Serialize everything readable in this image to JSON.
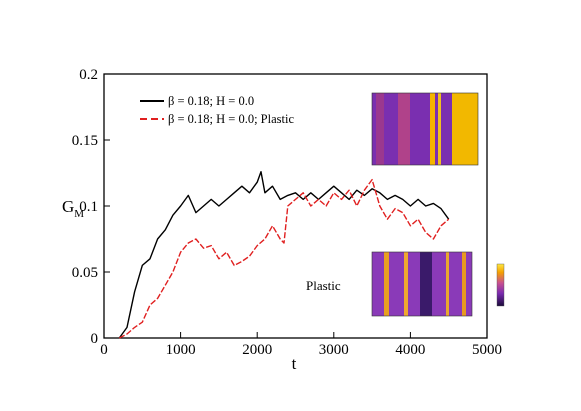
{
  "chart_data": {
    "type": "line",
    "xlabel": "t",
    "ylabel_main": "G",
    "ylabel_sub": "M",
    "xlim": [
      0,
      5000
    ],
    "ylim": [
      0,
      0.2
    ],
    "xticks": [
      0,
      1000,
      2000,
      3000,
      4000,
      5000
    ],
    "yticks": [
      0,
      0.05,
      0.1,
      0.15,
      0.2
    ],
    "xtick_labels": [
      "0",
      "1000",
      "2000",
      "3000",
      "4000",
      "5000"
    ],
    "ytick_labels": [
      "0",
      "0.05",
      "0.1",
      "0.15",
      "0.2"
    ],
    "grid": false,
    "legend_position": "top-left",
    "series": [
      {
        "name": "β = 0.18; H = 0.0",
        "color": "#000000",
        "dash": "solid",
        "x": [
          200,
          300,
          400,
          500,
          600,
          700,
          800,
          900,
          1000,
          1100,
          1200,
          1300,
          1400,
          1500,
          1600,
          1700,
          1800,
          1900,
          2000,
          2050,
          2100,
          2200,
          2300,
          2400,
          2500,
          2600,
          2700,
          2800,
          2900,
          3000,
          3100,
          3200,
          3300,
          3400,
          3500,
          3600,
          3700,
          3800,
          3900,
          4000,
          4100,
          4200,
          4300,
          4400,
          4500
        ],
        "y": [
          0.0,
          0.008,
          0.035,
          0.055,
          0.06,
          0.075,
          0.082,
          0.093,
          0.1,
          0.108,
          0.095,
          0.1,
          0.105,
          0.1,
          0.105,
          0.11,
          0.115,
          0.11,
          0.118,
          0.126,
          0.11,
          0.115,
          0.105,
          0.108,
          0.11,
          0.105,
          0.11,
          0.105,
          0.11,
          0.115,
          0.11,
          0.105,
          0.112,
          0.108,
          0.113,
          0.11,
          0.105,
          0.108,
          0.105,
          0.1,
          0.105,
          0.1,
          0.102,
          0.098,
          0.09
        ]
      },
      {
        "name": "β = 0.18; H = 0.0;  Plastic",
        "color": "#e02020",
        "dash": "dashed",
        "x": [
          200,
          300,
          400,
          500,
          600,
          700,
          800,
          900,
          1000,
          1100,
          1200,
          1300,
          1400,
          1500,
          1600,
          1700,
          1800,
          1900,
          2000,
          2100,
          2200,
          2300,
          2350,
          2400,
          2500,
          2600,
          2700,
          2800,
          2900,
          3000,
          3100,
          3200,
          3300,
          3400,
          3500,
          3600,
          3700,
          3800,
          3900,
          4000,
          4100,
          4200,
          4300,
          4400,
          4500
        ],
        "y": [
          0.0,
          0.003,
          0.008,
          0.012,
          0.025,
          0.03,
          0.04,
          0.05,
          0.065,
          0.072,
          0.075,
          0.068,
          0.07,
          0.06,
          0.065,
          0.055,
          0.058,
          0.062,
          0.07,
          0.075,
          0.085,
          0.075,
          0.072,
          0.1,
          0.105,
          0.11,
          0.1,
          0.105,
          0.1,
          0.11,
          0.105,
          0.112,
          0.1,
          0.112,
          0.12,
          0.1,
          0.09,
          0.098,
          0.095,
          0.085,
          0.09,
          0.08,
          0.075,
          0.085,
          0.09
        ]
      }
    ],
    "annotations": [
      "Plastic"
    ]
  }
}
